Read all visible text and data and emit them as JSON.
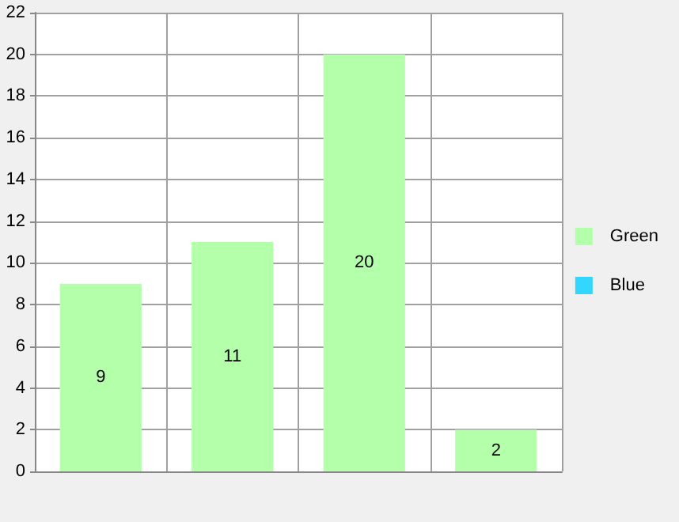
{
  "chart_data": {
    "type": "bar",
    "categories": [
      null,
      null,
      null,
      null
    ],
    "series": [
      {
        "name": "Green",
        "color": "#b3ffaa",
        "values": [
          9,
          11,
          20,
          2
        ]
      },
      {
        "name": "Blue",
        "color": "#33d6ff",
        "values": [
          null,
          null,
          null,
          null
        ]
      }
    ],
    "ylim": [
      0,
      22
    ],
    "yticks": [
      0,
      2,
      4,
      6,
      8,
      10,
      12,
      14,
      16,
      18,
      20,
      22
    ],
    "grid": true,
    "legend": "right",
    "data_labels": true
  }
}
